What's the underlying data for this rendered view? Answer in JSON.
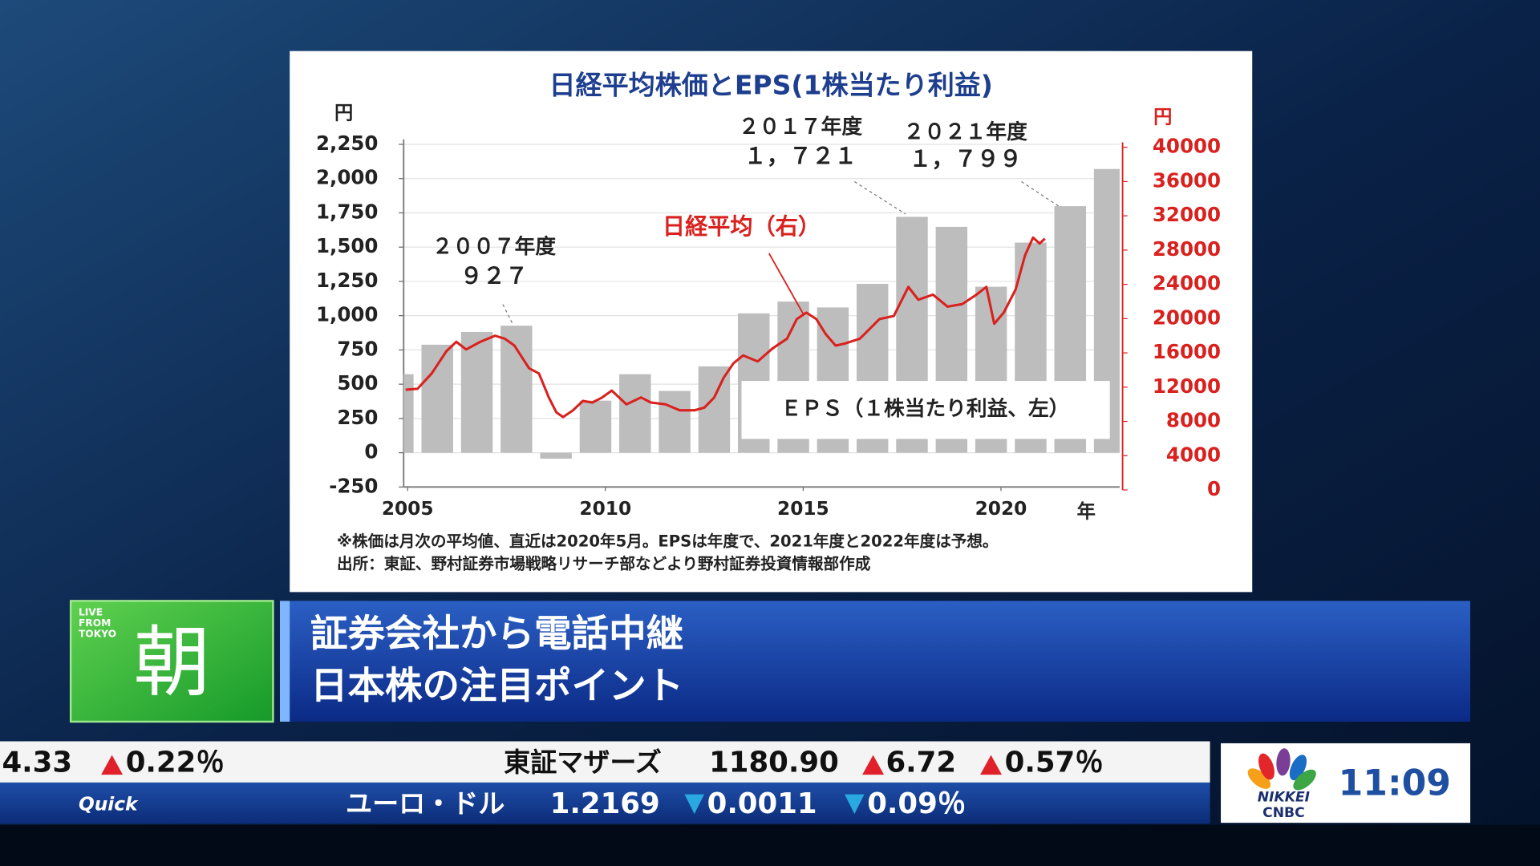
{
  "chart_data": {
    "type": "combo",
    "title": "日経平均株価とEPS(1株当たり利益)",
    "y_unit": "円",
    "y2_unit": "円",
    "x_unit": "年",
    "xlim": [
      2004.9,
      2023
    ],
    "xticks": [
      2005,
      2010,
      2015,
      2020
    ],
    "ylim": [
      -250,
      2250
    ],
    "yticks": [
      {
        "value": -250,
        "label": "-250"
      },
      0,
      250,
      500,
      750,
      {
        "value": 1000,
        "label": "1,000"
      },
      {
        "value": 1250,
        "label": "1,250"
      },
      {
        "value": 1500,
        "label": "1,500"
      },
      {
        "value": 1750,
        "label": "1,750"
      },
      {
        "value": 2000,
        "label": "2,000"
      },
      {
        "value": 2250,
        "label": "2,250"
      }
    ],
    "y2lim": [
      0,
      40000
    ],
    "y2ticks": [
      0,
      4000,
      8000,
      12000,
      16000,
      20000,
      24000,
      28000,
      32000,
      36000,
      40000
    ],
    "grid": true,
    "series": [
      {
        "name": "ＥＰＳ（１株当たり利益、左）",
        "color": "#bdbdbd",
        "x": [
          2004,
          2005,
          2006,
          2007,
          2008,
          2009,
          2010,
          2011,
          2012,
          2013,
          2014,
          2015,
          2016,
          2017,
          2018,
          2019,
          2020,
          2021,
          2022
        ],
        "values": [
          573,
          788,
          881,
          927,
          -43,
          380,
          573,
          451,
          630,
          1017,
          1103,
          1060,
          1232,
          1721,
          1648,
          1211,
          1533,
          1799,
          2070
        ],
        "value_labels": [
          null,
          null,
          null,
          "９２７",
          null,
          null,
          null,
          null,
          null,
          null,
          null,
          null,
          null,
          "１，７２１",
          null,
          null,
          null,
          "１，７９９",
          null
        ]
      },
      {
        "name": "日経平均（右）",
        "color": "#d9211e",
        "axis": "y2",
        "x": [
          2004.95,
          2005.25,
          2005.61,
          2005.98,
          2006.23,
          2006.48,
          2006.84,
          2007.21,
          2007.46,
          2007.7,
          2008.07,
          2008.32,
          2008.57,
          2008.76,
          2008.93,
          2009.18,
          2009.43,
          2009.67,
          2009.92,
          2010.16,
          2010.53,
          2010.9,
          2011.15,
          2011.52,
          2011.88,
          2012.25,
          2012.5,
          2012.75,
          2012.99,
          2013.24,
          2013.48,
          2013.85,
          2014.22,
          2014.59,
          2014.84,
          2015.08,
          2015.33,
          2015.57,
          2015.82,
          2016.06,
          2016.43,
          2016.68,
          2016.93,
          2017.29,
          2017.66,
          2017.91,
          2018.28,
          2018.65,
          2019.02,
          2019.38,
          2019.63,
          2019.83,
          2020.07,
          2020.37,
          2020.61,
          2020.81,
          2020.98,
          2021.11
        ],
        "values": [
          11700,
          11800,
          13600,
          16200,
          17300,
          16400,
          17300,
          18000,
          17650,
          16850,
          14200,
          13600,
          10800,
          9050,
          8500,
          9300,
          10400,
          10200,
          10800,
          11600,
          10000,
          10800,
          10200,
          10000,
          9300,
          9300,
          9600,
          10800,
          13100,
          14800,
          15700,
          15000,
          16500,
          17650,
          19950,
          20700,
          19950,
          18200,
          16850,
          17100,
          17650,
          18800,
          19950,
          20300,
          23700,
          22200,
          22800,
          21400,
          21700,
          22800,
          23700,
          19400,
          20700,
          23400,
          27400,
          29450,
          28770,
          29340
        ]
      }
    ],
    "annotations": [
      "２００７年度",
      "２０１７年度",
      "２０２１年度"
    ],
    "notes": [
      "※株価は月次の平均値、直近は2020年5月。EPSは年度で、2021年度と2022年度は予想。",
      "出所：東証、野村証券市場戦略リサーチ部などより野村証券投資情報部作成"
    ]
  },
  "banner": {
    "live": [
      "LIVE",
      "FROM",
      "TOKYO"
    ],
    "logo": "朝",
    "lines": [
      "証券会社から電話中継",
      "日本株の注目ポイント"
    ]
  },
  "ticker": {
    "row1": [
      "4.33",
      "0.22％",
      "東証マザーズ",
      "1180.90",
      "6.72",
      "0.57％"
    ],
    "row2": [
      "Quick",
      "ユーロ・ドル",
      "1.2169",
      "0.0011",
      "0.09％"
    ]
  },
  "clock": {
    "brand": [
      "NIKKEI",
      "CNBC"
    ],
    "time": "11:09"
  }
}
